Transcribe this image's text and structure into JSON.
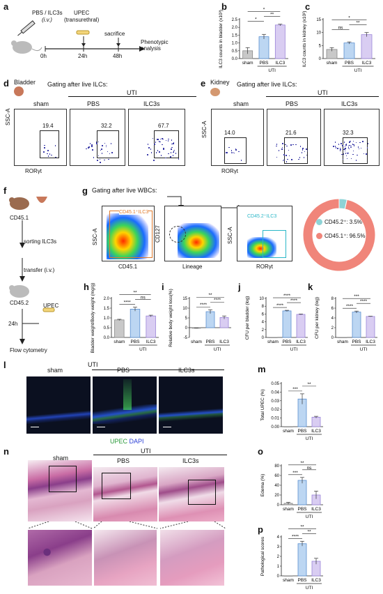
{
  "panels": {
    "a": {
      "letter": "a",
      "injection": "PBS / ILC3s",
      "route": "(i.v.)",
      "upec": "UPEC",
      "upec_route": "(transurethral)",
      "sacrifice": "sacrifice",
      "outcome": "Phenotypic analysis",
      "times": [
        "0h",
        "24h",
        "48h"
      ]
    },
    "b": {
      "letter": "b"
    },
    "c": {
      "letter": "c"
    },
    "d": {
      "letter": "d",
      "tissue": "Bladder",
      "title": "Gating after live ILCs:",
      "groups": [
        "sham",
        "PBS",
        "ILC3s"
      ],
      "uti": "UTI",
      "percents": [
        "19.4",
        "32.2",
        "67.7"
      ],
      "yaxis": "SSC-A",
      "xaxis": "RORγt"
    },
    "e": {
      "letter": "e",
      "tissue": "Kidney",
      "title": "Gating after live ILCs:",
      "groups": [
        "sham",
        "PBS",
        "ILC3s"
      ],
      "uti": "UTI",
      "percents": [
        "14.0",
        "21.6",
        "32.3"
      ],
      "yaxis": "SSC-A",
      "xaxis": "RORγt"
    },
    "f": {
      "letter": "f",
      "steps": [
        "CD45.1",
        "sorting ILC3s",
        "transfer (i.v.)",
        "CD45.2",
        "UPEC",
        "Flow cytometry"
      ],
      "time": "24h"
    },
    "g": {
      "letter": "g",
      "title": "Gating after live WBCs:",
      "gate1": "CD45.1⁺ILC3",
      "gate3": "CD45.2⁺ILC3",
      "axes": [
        "SSC-A",
        "CD45.1",
        "CD127",
        "Lineage",
        "SSC-A",
        "RORγt"
      ],
      "legend": [
        "CD45.2⁺: 3.5%",
        "CD45.1⁺: 96.5%"
      ]
    },
    "h": {
      "letter": "h"
    },
    "i": {
      "letter": "i"
    },
    "j": {
      "letter": "j"
    },
    "k": {
      "letter": "k"
    },
    "l": {
      "letter": "l",
      "groups": [
        "sham",
        "PBS",
        "ILC3s"
      ],
      "uti": "UTI",
      "stain_upec": "UPEC",
      "stain_dapi": "DAPI"
    },
    "m": {
      "letter": "m"
    },
    "n": {
      "letter": "n",
      "groups": [
        "sham",
        "PBS",
        "ILC3s"
      ],
      "uti": "UTI"
    },
    "o": {
      "letter": "o"
    },
    "p": {
      "letter": "p"
    }
  },
  "chart_data": [
    {
      "panel": "b",
      "type": "bar",
      "categories": [
        "sham",
        "PBS",
        "ILC3"
      ],
      "group_label": "UTI",
      "values": [
        0.5,
        1.4,
        2.15
      ],
      "errors": [
        0.2,
        0.15,
        0.05
      ],
      "ylabel": "ILC3 counts in bladder (x10³)",
      "ylim": [
        0,
        2.5
      ],
      "yticks": [
        "0.0",
        "0.5",
        "1.0",
        "1.5",
        "2.0",
        "2.5"
      ],
      "sig": [
        "*",
        "**",
        "*"
      ]
    },
    {
      "panel": "c",
      "type": "bar",
      "categories": [
        "sham",
        "PBS",
        "ILC3"
      ],
      "group_label": "UTI",
      "values": [
        3.5,
        6.0,
        9.2
      ],
      "errors": [
        0.7,
        0.4,
        0.8
      ],
      "ylabel": "ILC3 counts in kidney (x10²)",
      "ylim": [
        0,
        15
      ],
      "yticks": [
        "0",
        "5",
        "10",
        "15"
      ],
      "sig": [
        "ns",
        "**",
        "*"
      ]
    },
    {
      "panel": "g",
      "type": "pie",
      "labels": [
        "CD45.2⁺",
        "CD45.1⁺"
      ],
      "values": [
        3.5,
        96.5
      ],
      "colors": [
        "#8ed3d6",
        "#f0857a"
      ]
    },
    {
      "panel": "h",
      "type": "bar",
      "categories": [
        "sham",
        "PBS",
        "ILC3"
      ],
      "group_label": "UTI",
      "values": [
        0.9,
        1.45,
        1.1
      ],
      "errors": [
        0.03,
        0.1,
        0.04
      ],
      "ylabel": "Bladder weight/Body weight (mg/g)",
      "ylim": [
        0,
        2.0
      ],
      "yticks": [
        "0.0",
        "0.5",
        "1.0",
        "1.5",
        "2.0"
      ],
      "sig": [
        "****",
        "ns",
        "**"
      ]
    },
    {
      "panel": "i",
      "type": "bar",
      "categories": [
        "sham",
        "PBS",
        "ILC3"
      ],
      "group_label": "UTI",
      "values": [
        -0.3,
        8.2,
        5.2
      ],
      "errors": [
        0.1,
        1.0,
        0.8
      ],
      "ylabel": "Relative body weight loss(%)",
      "ylim": [
        -5,
        15
      ],
      "yticks": [
        "-5",
        "0",
        "5",
        "10",
        "15"
      ],
      "sig": [
        "****",
        "****",
        "**"
      ]
    },
    {
      "panel": "j",
      "type": "bar",
      "categories": [
        "sham",
        "PBS",
        "ILC3"
      ],
      "group_label": "UTI",
      "values": [
        0,
        6.8,
        5.9
      ],
      "errors": [
        0,
        0.15,
        0.1
      ],
      "ylabel": "CFU per bladder (log)",
      "ylim": [
        0,
        10
      ],
      "yticks": [
        "0",
        "2",
        "4",
        "6",
        "8",
        "10"
      ],
      "sig": [
        "****",
        "****",
        "****"
      ]
    },
    {
      "panel": "k",
      "type": "bar",
      "categories": [
        "sham",
        "PBS",
        "ILC3"
      ],
      "group_label": "UTI",
      "values": [
        0,
        5.2,
        4.3
      ],
      "errors": [
        0,
        0.2,
        0.05
      ],
      "ylabel": "CFU per kidney (log)",
      "ylim": [
        0,
        8
      ],
      "yticks": [
        "0",
        "2",
        "4",
        "6",
        "8"
      ],
      "sig": [
        "****",
        "****",
        "***"
      ]
    },
    {
      "panel": "m",
      "type": "bar",
      "categories": [
        "sham",
        "PBS",
        "ILC3"
      ],
      "group_label": "UTI",
      "values": [
        0,
        0.032,
        0.011
      ],
      "errors": [
        0,
        0.006,
        0.001
      ],
      "ylabel": "Total UPEC (%)",
      "ylim": [
        0,
        0.05
      ],
      "yticks": [
        "0.00",
        "0.01",
        "0.02",
        "0.03",
        "0.04",
        "0.05"
      ],
      "sig": [
        "***",
        "**"
      ]
    },
    {
      "panel": "o",
      "type": "bar",
      "categories": [
        "sham",
        "PBS",
        "ILC3"
      ],
      "group_label": "UTI",
      "values": [
        3,
        50,
        20
      ],
      "errors": [
        2,
        6,
        8
      ],
      "ylabel": "Edema (%)",
      "ylim": [
        0,
        80
      ],
      "yticks": [
        "0",
        "20",
        "40",
        "60",
        "80"
      ],
      "sig": [
        "***",
        "ns",
        "**"
      ]
    },
    {
      "panel": "p",
      "type": "bar",
      "categories": [
        "sham",
        "PBS",
        "ILC3"
      ],
      "group_label": "UTI",
      "values": [
        0,
        3.3,
        1.5
      ],
      "errors": [
        0,
        0.25,
        0.3
      ],
      "ylabel": "Pathological scores",
      "ylim": [
        0,
        4
      ],
      "yticks": [
        "0",
        "1",
        "2",
        "3",
        "4"
      ],
      "sig": [
        "****",
        "**",
        "**"
      ]
    }
  ]
}
